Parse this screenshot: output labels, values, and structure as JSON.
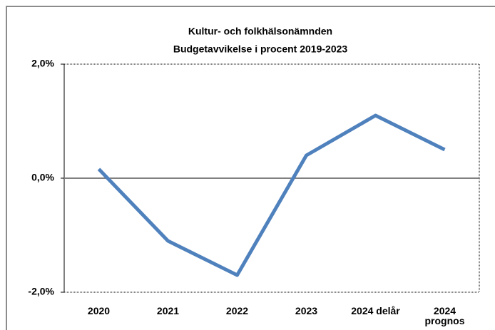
{
  "chart_data": {
    "type": "line",
    "title": [
      "Kultur- och folkhälsonämnden",
      "Budgetavvikelse  i procent 2019-2023"
    ],
    "categories": [
      "2020",
      "2021",
      "2022",
      "2023",
      "2024 delår",
      "2024 prognos"
    ],
    "series": [
      {
        "name": "Budgetavvikelse",
        "color": "#4f81bd",
        "values": [
          0.16,
          -1.1,
          -1.7,
          0.4,
          1.1,
          0.5
        ]
      }
    ],
    "ylim": [
      -2,
      2
    ],
    "yticks": [
      {
        "value": -2,
        "label": "-2,0%"
      },
      {
        "value": 0,
        "label": "0,0%"
      },
      {
        "value": 2,
        "label": "2,0%"
      }
    ],
    "grid": false,
    "legend": false
  }
}
